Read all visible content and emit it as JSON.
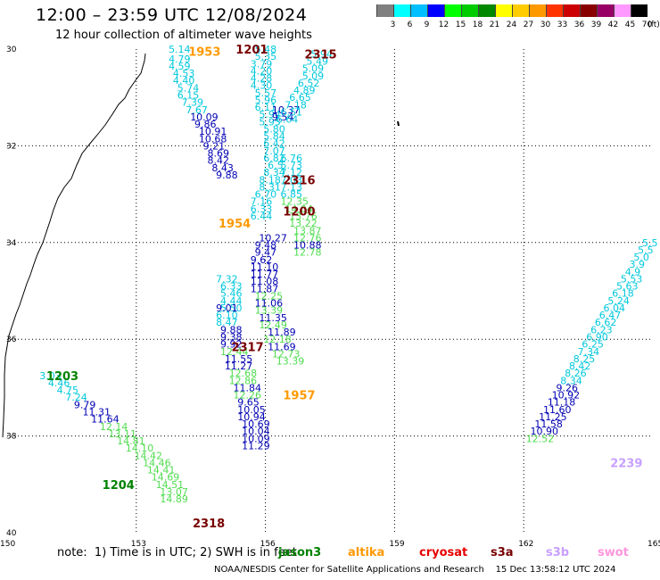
{
  "header": {
    "title": "12:00 – 23:59 UTC 12/08/2024",
    "subtitle": "12 hour collection of altimeter wave heights"
  },
  "colorbar": {
    "unit": "(ft)",
    "bins": [
      {
        "label": "3",
        "color": "#808080"
      },
      {
        "label": "6",
        "color": "#00ffff"
      },
      {
        "label": "9",
        "color": "#00c0ff"
      },
      {
        "label": "12",
        "color": "#0000ff"
      },
      {
        "label": "15",
        "color": "#00ff00"
      },
      {
        "label": "18",
        "color": "#00cc00"
      },
      {
        "label": "21",
        "color": "#008800"
      },
      {
        "label": "24",
        "color": "#ffff00"
      },
      {
        "label": "27",
        "color": "#ffcc00"
      },
      {
        "label": "30",
        "color": "#ff9900"
      },
      {
        "label": "33",
        "color": "#ff3300"
      },
      {
        "label": "36",
        "color": "#cc0000"
      },
      {
        "label": "39",
        "color": "#880000"
      },
      {
        "label": "42",
        "color": "#990066"
      },
      {
        "label": "45",
        "color": "#ff99ff"
      },
      {
        "label": "70",
        "color": "#000000"
      }
    ]
  },
  "map": {
    "lon_min": 150,
    "lon_max": 165,
    "lat_min": -40,
    "lat_max": -30,
    "lon_ticks": [
      "150",
      "153",
      "156",
      "159",
      "162",
      "165"
    ],
    "lat_ticks": [
      "30",
      "32",
      "34",
      "36",
      "38",
      "40"
    ],
    "gridline_longitudes": [
      153,
      156,
      159,
      162
    ],
    "gridline_latitudes": [
      -32,
      -34,
      -36,
      -38
    ]
  },
  "colors": {
    "cyan": "#00c8dc",
    "blue": "#0000b4",
    "green": "#50dc50",
    "darkgreen": "#008200",
    "darkred": "#780000",
    "orange": "#ff9900",
    "lilac": "#c8a0ff",
    "pink": "#ff96dc",
    "red": "#e60000"
  },
  "track_labels": [
    {
      "text": "1953",
      "color": "orange",
      "lon": 154.5,
      "lat": -30.05
    },
    {
      "text": "1201",
      "color": "darkred",
      "lon": 155.6,
      "lat": -30.0
    },
    {
      "text": "2315",
      "color": "darkred",
      "lon": 157.2,
      "lat": -30.1
    },
    {
      "text": "2316",
      "color": "darkred",
      "lon": 156.7,
      "lat": -32.7
    },
    {
      "text": "1200",
      "color": "darkred",
      "lon": 156.7,
      "lat": -33.35
    },
    {
      "text": "1954",
      "color": "orange",
      "lon": 155.2,
      "lat": -33.6
    },
    {
      "text": "2317",
      "color": "darkred",
      "lon": 155.5,
      "lat": -36.15
    },
    {
      "text": "1203",
      "color": "darkgreen",
      "lon": 151.2,
      "lat": -36.75
    },
    {
      "text": "1957",
      "color": "orange",
      "lon": 156.7,
      "lat": -37.15
    },
    {
      "text": "1204",
      "color": "darkgreen",
      "lon": 152.5,
      "lat": -39.0
    },
    {
      "text": "2318",
      "color": "darkred",
      "lon": 154.6,
      "lat": -39.8
    },
    {
      "text": "2239",
      "color": "lilac",
      "lon": 164.3,
      "lat": -38.55
    }
  ],
  "tracks": [
    {
      "color": "cyan",
      "points": [
        [
          154.0,
          -30.0,
          "5.14"
        ],
        [
          154.0,
          -30.2,
          "4.79"
        ],
        [
          154.0,
          -30.35,
          "4.59"
        ],
        [
          154.1,
          -30.5,
          "4.53"
        ],
        [
          154.1,
          -30.65,
          "4.40"
        ],
        [
          154.2,
          -30.8,
          "5.74"
        ],
        [
          154.2,
          -30.95,
          "6.15"
        ],
        [
          154.3,
          -31.1,
          "7.39"
        ],
        [
          154.4,
          -31.25,
          "7.67"
        ]
      ]
    },
    {
      "color": "blue",
      "points": [
        [
          154.5,
          -31.4,
          "10.09"
        ],
        [
          154.6,
          -31.55,
          "9.86"
        ],
        [
          154.7,
          -31.7,
          "10.91"
        ],
        [
          154.7,
          -31.85,
          "10.68"
        ],
        [
          154.8,
          -32.0,
          "9.21"
        ],
        [
          154.9,
          -32.15,
          "8.69"
        ],
        [
          154.9,
          -32.3,
          "8.42"
        ],
        [
          155.0,
          -32.45,
          "8.43"
        ],
        [
          155.1,
          -32.6,
          "9.88"
        ]
      ]
    },
    {
      "color": "cyan",
      "points": [
        [
          155.1,
          -34.75,
          "7.32"
        ],
        [
          155.2,
          -34.9,
          "6.33"
        ],
        [
          155.2,
          -35.05,
          "5.46"
        ],
        [
          155.2,
          -35.2,
          "4.44"
        ],
        [
          155.2,
          -35.35,
          "5.50"
        ],
        [
          155.1,
          -35.5,
          "6.10"
        ],
        [
          155.1,
          -35.65,
          "8.47"
        ]
      ]
    },
    {
      "color": "blue",
      "points": [
        [
          155.1,
          -35.35,
          "9.01"
        ],
        [
          155.2,
          -35.8,
          "9.88"
        ],
        [
          155.2,
          -35.95,
          "9.38"
        ],
        [
          155.2,
          -36.1,
          "9.92"
        ]
      ]
    },
    {
      "color": "green",
      "points": [
        [
          155.2,
          -36.25,
          "12.44"
        ]
      ]
    },
    {
      "color": "blue",
      "points": [
        [
          155.3,
          -36.4,
          "11.55"
        ],
        [
          155.3,
          -36.55,
          "11.27"
        ]
      ]
    },
    {
      "color": "green",
      "points": [
        [
          155.4,
          -36.7,
          "12.68"
        ],
        [
          155.4,
          -36.85,
          "12.86"
        ]
      ]
    },
    {
      "color": "blue",
      "points": [
        [
          155.5,
          -37.0,
          "11.84"
        ]
      ]
    },
    {
      "color": "green",
      "points": [
        [
          155.5,
          -37.15,
          "12.26"
        ]
      ]
    },
    {
      "color": "blue",
      "points": [
        [
          155.6,
          -37.3,
          "9.65"
        ],
        [
          155.6,
          -37.45,
          "10.05"
        ],
        [
          155.6,
          -37.6,
          "10.94"
        ],
        [
          155.7,
          -37.75,
          "10.69"
        ],
        [
          155.7,
          -37.9,
          "10.04"
        ],
        [
          155.7,
          -38.05,
          "10.09"
        ],
        [
          155.7,
          -38.2,
          "11.29"
        ]
      ]
    },
    {
      "color": "cyan",
      "points": [
        [
          151.0,
          -36.75,
          "3.03"
        ],
        [
          151.2,
          -36.9,
          "4.46"
        ],
        [
          151.4,
          -37.05,
          "4.75"
        ],
        [
          151.6,
          -37.2,
          "7.24"
        ]
      ]
    },
    {
      "color": "blue",
      "points": [
        [
          151.8,
          -37.35,
          "9.79"
        ],
        [
          152.0,
          -37.5,
          "11.31"
        ],
        [
          152.2,
          -37.65,
          "11.64"
        ]
      ]
    },
    {
      "color": "green",
      "points": [
        [
          152.4,
          -37.8,
          "12.14"
        ],
        [
          152.6,
          -37.95,
          "13.11"
        ],
        [
          152.8,
          -38.1,
          "14.81"
        ],
        [
          153.0,
          -38.25,
          "14.10"
        ],
        [
          153.2,
          -38.4,
          "14.42"
        ],
        [
          153.4,
          -38.55,
          "14.46"
        ],
        [
          153.5,
          -38.7,
          "14.41"
        ],
        [
          153.6,
          -38.85,
          "14.69"
        ],
        [
          153.7,
          -39.0,
          "14.51"
        ],
        [
          153.8,
          -39.15,
          "13.07"
        ],
        [
          153.8,
          -39.3,
          "14.89"
        ]
      ]
    },
    {
      "color": "cyan",
      "points": [
        [
          156.0,
          -30.0,
          "5.48"
        ],
        [
          156.0,
          -30.15,
          "5.35"
        ],
        [
          155.9,
          -30.3,
          "3.79"
        ],
        [
          155.9,
          -30.45,
          "4.20"
        ],
        [
          155.9,
          -30.6,
          "4.28"
        ],
        [
          155.9,
          -30.75,
          "4.30"
        ],
        [
          156.0,
          -30.9,
          "5.57"
        ],
        [
          156.0,
          -31.05,
          "5.96"
        ],
        [
          156.0,
          -31.2,
          "6.11"
        ],
        [
          156.1,
          -31.35,
          "5.94"
        ],
        [
          156.1,
          -31.5,
          "5.95"
        ],
        [
          156.2,
          -31.65,
          "5.80"
        ],
        [
          156.2,
          -31.8,
          "5.84"
        ],
        [
          156.2,
          -31.95,
          "6.42"
        ],
        [
          156.2,
          -32.1,
          "7.07"
        ],
        [
          156.2,
          -32.25,
          "6.82"
        ],
        [
          156.3,
          -32.4,
          "6.5"
        ],
        [
          156.2,
          -32.55,
          "8.34"
        ],
        [
          156.1,
          -32.7,
          "8.18"
        ],
        [
          156.1,
          -32.85,
          "8.31"
        ],
        [
          156.0,
          -33.0,
          "6.70"
        ],
        [
          155.9,
          -33.15,
          "7.16"
        ],
        [
          155.9,
          -33.3,
          "6.33"
        ],
        [
          155.9,
          -33.45,
          "6.44"
        ]
      ]
    },
    {
      "color": "blue",
      "points": [
        [
          156.4,
          -31.25,
          "10.37"
        ],
        [
          156.4,
          -31.4,
          "9.54"
        ]
      ]
    },
    {
      "color": "cyan",
      "points": [
        [
          157.3,
          -30.1,
          "5.94"
        ],
        [
          157.2,
          -30.25,
          "5.49"
        ],
        [
          157.1,
          -30.4,
          "5.09"
        ],
        [
          157.1,
          -30.55,
          "5.09"
        ],
        [
          157.0,
          -30.7,
          "6.52"
        ],
        [
          156.9,
          -30.85,
          "4.89"
        ],
        [
          156.8,
          -31.0,
          "6.65"
        ],
        [
          156.7,
          -31.15,
          "7.18"
        ],
        [
          156.6,
          -31.3,
          "6.51"
        ],
        [
          156.5,
          -31.45,
          "6.64"
        ],
        [
          156.6,
          -32.25,
          "6.76"
        ],
        [
          156.6,
          -32.4,
          "5.73"
        ],
        [
          156.6,
          -32.55,
          "7.12"
        ],
        [
          156.6,
          -32.7,
          "7.03"
        ],
        [
          156.6,
          -32.85,
          "7.13"
        ],
        [
          156.6,
          -33.0,
          "6.85"
        ]
      ]
    },
    {
      "color": "green",
      "points": [
        [
          156.6,
          -33.15,
          "12.35"
        ],
        [
          156.7,
          -33.3,
          "14.04"
        ],
        [
          156.8,
          -33.45,
          "13.76"
        ],
        [
          156.8,
          -33.6,
          "13.22"
        ],
        [
          156.9,
          -33.75,
          "13.87"
        ],
        [
          156.9,
          -33.9,
          "12.76"
        ]
      ]
    },
    {
      "color": "blue",
      "points": [
        [
          156.1,
          -33.9,
          "10.27"
        ],
        [
          156.0,
          -34.05,
          "9.48"
        ],
        [
          156.0,
          -34.2,
          "9.47"
        ],
        [
          155.9,
          -34.35,
          "9.62"
        ],
        [
          155.9,
          -34.5,
          "11.10"
        ],
        [
          155.9,
          -34.65,
          "11.77"
        ],
        [
          155.9,
          -34.8,
          "11.08"
        ],
        [
          155.9,
          -34.95,
          "11.87"
        ]
      ]
    },
    {
      "color": "blue",
      "points": [
        [
          156.9,
          -34.05,
          "10.88"
        ]
      ]
    },
    {
      "color": "green",
      "points": [
        [
          156.9,
          -34.2,
          "12.78"
        ],
        [
          156.0,
          -35.1,
          "12.25"
        ]
      ]
    },
    {
      "color": "blue",
      "points": [
        [
          156.0,
          -35.25,
          "11.06"
        ]
      ]
    },
    {
      "color": "green",
      "points": [
        [
          156.0,
          -35.4,
          "13.39"
        ]
      ]
    },
    {
      "color": "blue",
      "points": [
        [
          156.1,
          -35.55,
          "11.35"
        ]
      ]
    },
    {
      "color": "green",
      "points": [
        [
          156.1,
          -35.7,
          "12.49"
        ]
      ]
    },
    {
      "color": "blue",
      "points": [
        [
          156.3,
          -35.85,
          "11.89"
        ]
      ]
    },
    {
      "color": "green",
      "points": [
        [
          156.2,
          -36.0,
          "12.18"
        ]
      ]
    },
    {
      "color": "blue",
      "points": [
        [
          156.3,
          -36.15,
          "11.69"
        ]
      ]
    },
    {
      "color": "green",
      "points": [
        [
          156.4,
          -36.3,
          "12.73"
        ],
        [
          156.5,
          -36.45,
          "13.39"
        ]
      ]
    },
    {
      "color": "cyan",
      "points": [
        [
          165.0,
          -34.0,
          "5.5"
        ],
        [
          164.9,
          -34.15,
          "5.5"
        ],
        [
          164.8,
          -34.3,
          "5.0"
        ],
        [
          164.7,
          -34.45,
          "3.9"
        ],
        [
          164.6,
          -34.6,
          "4.9"
        ],
        [
          164.5,
          -34.75,
          "5.53"
        ],
        [
          164.4,
          -34.9,
          "5.63"
        ],
        [
          164.3,
          -35.05,
          "6.18"
        ],
        [
          164.2,
          -35.2,
          "5.24"
        ],
        [
          164.1,
          -35.35,
          "6.04"
        ],
        [
          164.0,
          -35.5,
          "6.47"
        ],
        [
          163.9,
          -35.65,
          "6.62"
        ],
        [
          163.8,
          -35.8,
          "6.23"
        ],
        [
          163.7,
          -35.95,
          "6.90"
        ],
        [
          163.6,
          -36.1,
          "6.25"
        ],
        [
          163.5,
          -36.25,
          "7.34"
        ],
        [
          163.4,
          -36.4,
          "8.25"
        ],
        [
          163.3,
          -36.55,
          "8.42"
        ],
        [
          163.2,
          -36.7,
          "8.26"
        ],
        [
          163.1,
          -36.85,
          "8.34"
        ]
      ]
    },
    {
      "color": "blue",
      "points": [
        [
          163.0,
          -37.0,
          "9.26"
        ],
        [
          162.9,
          -37.15,
          "10.92"
        ],
        [
          162.8,
          -37.3,
          "11.18"
        ],
        [
          162.7,
          -37.45,
          "11.60"
        ],
        [
          162.6,
          -37.6,
          "11.25"
        ],
        [
          162.5,
          -37.75,
          "11.58"
        ],
        [
          162.4,
          -37.9,
          "10.90"
        ]
      ]
    },
    {
      "color": "green",
      "points": [
        [
          162.3,
          -38.05,
          "12.52"
        ]
      ]
    }
  ],
  "legend": {
    "note": "note:  1) Time is in UTC; 2) SWH is in feet",
    "items": [
      {
        "label": "jason3",
        "color": "darkgreen"
      },
      {
        "label": "altika",
        "color": "orange"
      },
      {
        "label": "cryosat",
        "color": "red"
      },
      {
        "label": "s3a",
        "color": "darkred"
      },
      {
        "label": "s3b",
        "color": "lilac"
      },
      {
        "label": "swot",
        "color": "pink"
      }
    ]
  },
  "footer": "NOAA/NESDIS Center for Satellite Applications and Research    15 Dec 13:58:12 UTC 2024"
}
